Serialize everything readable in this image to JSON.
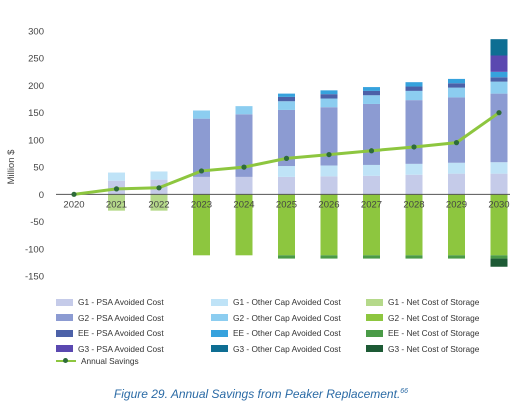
{
  "chart_data": {
    "type": "bar",
    "stacked": true,
    "ylabel": "Million $",
    "ylim": [
      -150,
      300
    ],
    "yticks": [
      300,
      250,
      200,
      150,
      100,
      50,
      0,
      -50,
      -100,
      -150
    ],
    "grid": false,
    "legend_position": "bottom",
    "categories": [
      "2020",
      "2021",
      "2022",
      "2023",
      "2024",
      "2025",
      "2026",
      "2027",
      "2028",
      "2029",
      "2030"
    ],
    "series": [
      {
        "name": "G1 - PSA Avoided Cost",
        "color": "#c5cbe9",
        "values": [
          0,
          25,
          27,
          32,
          32,
          32,
          33,
          34,
          36,
          38,
          38
        ]
      },
      {
        "name": "G1 - Other Cap Avoided Cost",
        "color": "#bfe3f7",
        "values": [
          0,
          15,
          15,
          0,
          0,
          20,
          20,
          20,
          20,
          20,
          21
        ]
      },
      {
        "name": "G1 - Net Cost of Storage",
        "color": "#b5d98a",
        "values": [
          0,
          -30,
          -30,
          0,
          0,
          0,
          0,
          0,
          0,
          0,
          0
        ]
      },
      {
        "name": "G2 - PSA Avoided Cost",
        "color": "#8c9bd2",
        "values": [
          0,
          0,
          0,
          107,
          115,
          103,
          107,
          112,
          117,
          120,
          126
        ]
      },
      {
        "name": "G2 - Other Cap Avoided Cost",
        "color": "#8ccdf0",
        "values": [
          0,
          0,
          0,
          15,
          15,
          16,
          16,
          16,
          17,
          18,
          22
        ]
      },
      {
        "name": "G2 - Net Cost of Storage",
        "color": "#8dc63f",
        "values": [
          0,
          0,
          0,
          -112,
          -112,
          -112,
          -112,
          -112,
          -112,
          -112,
          -112
        ]
      },
      {
        "name": "EE - PSA Avoided Cost",
        "color": "#4c61a8",
        "values": [
          0,
          0,
          0,
          0,
          0,
          8,
          8,
          8,
          8,
          8,
          8
        ]
      },
      {
        "name": "EE - Other Cap Avoided Cost",
        "color": "#36a2dd",
        "values": [
          0,
          0,
          0,
          0,
          0,
          6,
          7,
          7,
          8,
          8,
          10
        ]
      },
      {
        "name": "EE - Net Cost of Storage",
        "color": "#4a9b47",
        "values": [
          0,
          0,
          0,
          0,
          0,
          -6,
          -6,
          -6,
          -6,
          -6,
          -6
        ]
      },
      {
        "name": "G3 - PSA Avoided Cost",
        "color": "#5a48b0",
        "values": [
          0,
          0,
          0,
          0,
          0,
          0,
          0,
          0,
          0,
          0,
          30
        ]
      },
      {
        "name": "G3 - Other Cap Avoided Cost",
        "color": "#0e6e93",
        "values": [
          0,
          0,
          0,
          0,
          0,
          0,
          0,
          0,
          0,
          0,
          30
        ]
      },
      {
        "name": "G3 - Net Cost of Storage",
        "color": "#1d5a35",
        "values": [
          0,
          0,
          0,
          0,
          0,
          0,
          0,
          0,
          0,
          0,
          -15
        ]
      }
    ],
    "line": {
      "name": "Annual Savings",
      "color": "#8dc63f",
      "marker_color": "#2e6b3a",
      "values": [
        0,
        10,
        12,
        43,
        50,
        66,
        73,
        80,
        87,
        95,
        150
      ]
    }
  },
  "legend": {
    "items": [
      {
        "label": "G1 - PSA Avoided Cost",
        "color": "#c5cbe9"
      },
      {
        "label": "G1 - Other Cap Avoided Cost",
        "color": "#bfe3f7"
      },
      {
        "label": "G1 - Net Cost of Storage",
        "color": "#b5d98a"
      },
      {
        "label": "G2 - PSA Avoided Cost",
        "color": "#8c9bd2"
      },
      {
        "label": "G2 - Other Cap Avoided Cost",
        "color": "#8ccdf0"
      },
      {
        "label": "G2 - Net Cost of Storage",
        "color": "#8dc63f"
      },
      {
        "label": "EE - PSA Avoided Cost",
        "color": "#4c61a8"
      },
      {
        "label": "EE - Other Cap Avoided Cost",
        "color": "#36a2dd"
      },
      {
        "label": "EE - Net Cost of Storage",
        "color": "#4a9b47"
      },
      {
        "label": "G3 - PSA Avoided Cost",
        "color": "#5a48b0"
      },
      {
        "label": "G3 - Other Cap Avoided Cost",
        "color": "#0e6e93"
      },
      {
        "label": "G3 - Net Cost of Storage",
        "color": "#1d5a35"
      }
    ],
    "line_label": "Annual Savings"
  },
  "caption": {
    "text": "Figure 29. Annual Savings from Peaker Replacement.",
    "footnote": "66"
  }
}
